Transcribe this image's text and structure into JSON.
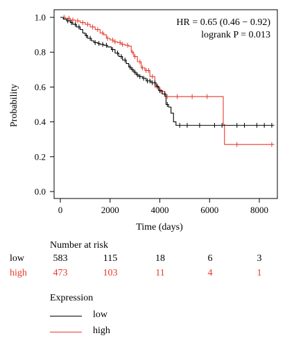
{
  "chart_data": {
    "type": "line",
    "title": "",
    "xlabel": "Time (days)",
    "ylabel": "Probability",
    "xlim": [
      0,
      8900
    ],
    "ylim": [
      0,
      1.05
    ],
    "x_ticks": [
      0,
      2000,
      4000,
      6000,
      8000
    ],
    "x_tick_labels": [
      "0",
      "2000",
      "4000",
      "6000",
      "8000"
    ],
    "y_ticks": [
      0.0,
      0.2,
      0.4,
      0.6,
      0.8,
      1.0
    ],
    "y_tick_labels": [
      "0.0",
      "0.2",
      "0.4",
      "0.6",
      "0.8",
      "1.0"
    ],
    "annotations": [
      "HR = 0.65 (0.46 − 0.92)",
      "logrank P = 0.013"
    ],
    "series": [
      {
        "name": "low",
        "color": "#000000",
        "step_points": [
          [
            0,
            1.0
          ],
          [
            120,
            0.99
          ],
          [
            250,
            0.98
          ],
          [
            400,
            0.97
          ],
          [
            500,
            0.96
          ],
          [
            650,
            0.945
          ],
          [
            800,
            0.93
          ],
          [
            900,
            0.91
          ],
          [
            1000,
            0.895
          ],
          [
            1100,
            0.88
          ],
          [
            1250,
            0.865
          ],
          [
            1350,
            0.855
          ],
          [
            1500,
            0.85
          ],
          [
            1600,
            0.845
          ],
          [
            1750,
            0.84
          ],
          [
            1900,
            0.83
          ],
          [
            2050,
            0.815
          ],
          [
            2200,
            0.795
          ],
          [
            2350,
            0.775
          ],
          [
            2500,
            0.755
          ],
          [
            2650,
            0.735
          ],
          [
            2750,
            0.715
          ],
          [
            2850,
            0.7
          ],
          [
            2950,
            0.685
          ],
          [
            3050,
            0.67
          ],
          [
            3150,
            0.66
          ],
          [
            3300,
            0.65
          ],
          [
            3450,
            0.635
          ],
          [
            3650,
            0.625
          ],
          [
            3850,
            0.605
          ],
          [
            3950,
            0.58
          ],
          [
            4100,
            0.56
          ],
          [
            4250,
            0.5
          ],
          [
            4350,
            0.485
          ],
          [
            4450,
            0.45
          ],
          [
            4550,
            0.4
          ],
          [
            4650,
            0.38
          ],
          [
            8600,
            0.38
          ]
        ],
        "censor_x": [
          300,
          450,
          600,
          750,
          1050,
          1200,
          1400,
          1550,
          1700,
          1850,
          2100,
          2300,
          2450,
          2600,
          2800,
          2900,
          3000,
          3100,
          3200,
          3350,
          3500,
          3600,
          3700,
          3800,
          3900,
          4000,
          4200,
          4300,
          4800,
          5100,
          5600,
          6200,
          6500,
          7100,
          7400,
          7900,
          8200,
          8500
        ]
      },
      {
        "name": "high",
        "color": "#e8382b",
        "step_points": [
          [
            0,
            1.0
          ],
          [
            200,
            0.995
          ],
          [
            400,
            0.985
          ],
          [
            600,
            0.98
          ],
          [
            800,
            0.97
          ],
          [
            1000,
            0.96
          ],
          [
            1200,
            0.945
          ],
          [
            1400,
            0.93
          ],
          [
            1600,
            0.91
          ],
          [
            1750,
            0.9
          ],
          [
            1850,
            0.88
          ],
          [
            2000,
            0.87
          ],
          [
            2150,
            0.86
          ],
          [
            2300,
            0.855
          ],
          [
            2450,
            0.845
          ],
          [
            2600,
            0.84
          ],
          [
            2750,
            0.835
          ],
          [
            2850,
            0.8
          ],
          [
            2950,
            0.775
          ],
          [
            3100,
            0.745
          ],
          [
            3250,
            0.71
          ],
          [
            3400,
            0.695
          ],
          [
            3600,
            0.66
          ],
          [
            3800,
            0.6
          ],
          [
            4000,
            0.575
          ],
          [
            4200,
            0.545
          ],
          [
            6500,
            0.545
          ],
          [
            6550,
            0.385
          ],
          [
            6600,
            0.27
          ],
          [
            8600,
            0.27
          ]
        ],
        "censor_x": [
          150,
          350,
          500,
          700,
          900,
          1100,
          1300,
          1500,
          1700,
          1900,
          2100,
          2200,
          2400,
          2500,
          2700,
          2900,
          3000,
          3200,
          3300,
          3450,
          3550,
          3700,
          3900,
          4050,
          4300,
          4700,
          5300,
          5900,
          7100,
          8500
        ]
      }
    ]
  },
  "risk_table": {
    "title": "Number at risk",
    "times": [
      0,
      2000,
      4000,
      6000,
      8000
    ],
    "rows": [
      {
        "label": "low",
        "values": [
          "583",
          "115",
          "18",
          "6",
          "3"
        ]
      },
      {
        "label": "high",
        "values": [
          "473",
          "103",
          "11",
          "4",
          "1"
        ]
      }
    ]
  },
  "legend": {
    "title": "Expression",
    "items": [
      {
        "label": "low",
        "color": "#000000"
      },
      {
        "label": "high",
        "color": "#e8382b"
      }
    ]
  }
}
